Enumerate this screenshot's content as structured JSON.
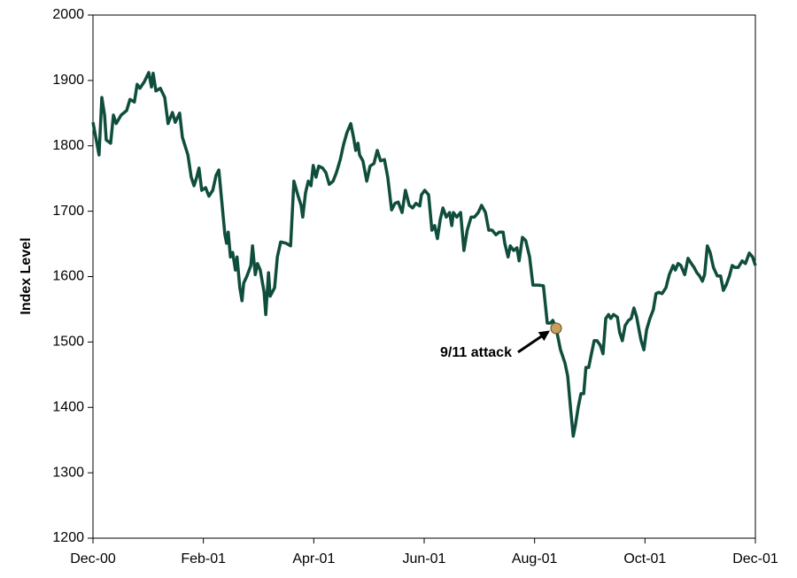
{
  "chart_data": {
    "type": "line",
    "ylabel": "Index Level",
    "xlim": [
      0,
      12
    ],
    "xticks": [
      {
        "value": 0,
        "label": "Dec-00"
      },
      {
        "value": 2,
        "label": "Feb-01"
      },
      {
        "value": 4,
        "label": "Apr-01"
      },
      {
        "value": 6,
        "label": "Jun-01"
      },
      {
        "value": 8,
        "label": "Aug-01"
      },
      {
        "value": 10,
        "label": "Oct-01"
      },
      {
        "value": 12,
        "label": "Dec-01"
      }
    ],
    "ylim": [
      1200,
      2000
    ],
    "yticks": [
      1200,
      1300,
      1400,
      1500,
      1600,
      1700,
      1800,
      1900,
      2000
    ],
    "color": "#0f4d3c",
    "x": [
      0,
      0.11,
      0.16,
      0.21,
      0.24,
      0.32,
      0.37,
      0.42,
      0.51,
      0.61,
      0.67,
      0.75,
      0.8,
      0.85,
      0.93,
      1.01,
      1.06,
      1.09,
      1.14,
      1.22,
      1.3,
      1.36,
      1.44,
      1.49,
      1.57,
      1.62,
      1.72,
      1.78,
      1.83,
      1.88,
      1.92,
      1.97,
      2.04,
      2.1,
      2.17,
      2.23,
      2.28,
      2.33,
      2.39,
      2.42,
      2.45,
      2.49,
      2.53,
      2.58,
      2.61,
      2.66,
      2.7,
      2.73,
      2.79,
      2.86,
      2.89,
      2.94,
      2.98,
      3.03,
      3.1,
      3.13,
      3.18,
      3.21,
      3.29,
      3.34,
      3.4,
      3.5,
      3.58,
      3.64,
      3.71,
      3.77,
      3.8,
      3.85,
      3.9,
      3.95,
      3.99,
      4.04,
      4.09,
      4.16,
      4.22,
      4.28,
      4.35,
      4.41,
      4.48,
      4.54,
      4.6,
      4.67,
      4.72,
      4.76,
      4.8,
      4.83,
      4.89,
      4.96,
      5.02,
      5.09,
      5.15,
      5.21,
      5.28,
      5.34,
      5.41,
      5.47,
      5.53,
      5.6,
      5.66,
      5.73,
      5.79,
      5.85,
      5.92,
      5.95,
      6.01,
      6.08,
      6.14,
      6.19,
      6.24,
      6.29,
      6.34,
      6.4,
      6.46,
      6.5,
      6.53,
      6.59,
      6.66,
      6.72,
      6.78,
      6.85,
      6.91,
      6.98,
      7.04,
      7.11,
      7.17,
      7.23,
      7.3,
      7.36,
      7.43,
      7.46,
      7.52,
      7.56,
      7.62,
      7.68,
      7.72,
      7.78,
      7.84,
      7.91,
      7.97,
      8.07,
      8.16,
      8.23,
      8.29,
      8.33,
      8.39,
      8.47,
      8.55,
      8.6,
      8.65,
      8.7,
      8.74,
      8.79,
      8.84,
      8.89,
      8.93,
      8.98,
      9.03,
      9.08,
      9.13,
      9.19,
      9.24,
      9.29,
      9.34,
      9.38,
      9.43,
      9.5,
      9.54,
      9.59,
      9.64,
      9.7,
      9.75,
      9.8,
      9.85,
      9.9,
      9.93,
      9.98,
      10.03,
      10.09,
      10.15,
      10.2,
      10.25,
      10.31,
      10.38,
      10.44,
      10.51,
      10.55,
      10.6,
      10.65,
      10.72,
      10.78,
      10.84,
      10.89,
      10.94,
      10.99,
      11.04,
      11.08,
      11.13,
      11.18,
      11.24,
      11.31,
      11.37,
      11.42,
      11.47,
      11.53,
      11.58,
      11.63,
      11.69,
      11.76,
      11.82,
      11.89,
      11.95,
      12.0
    ],
    "values": [
      1836,
      1786,
      1874,
      1847,
      1809,
      1804,
      1847,
      1834,
      1847,
      1854,
      1871,
      1867,
      1894,
      1888,
      1898,
      1912,
      1890,
      1911,
      1884,
      1888,
      1874,
      1834,
      1851,
      1836,
      1850,
      1813,
      1786,
      1752,
      1739,
      1752,
      1766,
      1732,
      1736,
      1723,
      1732,
      1755,
      1763,
      1718,
      1664,
      1651,
      1668,
      1630,
      1637,
      1610,
      1630,
      1583,
      1563,
      1590,
      1601,
      1617,
      1647,
      1603,
      1620,
      1610,
      1576,
      1542,
      1606,
      1570,
      1583,
      1630,
      1653,
      1651,
      1647,
      1746,
      1725,
      1709,
      1691,
      1728,
      1746,
      1739,
      1770,
      1752,
      1769,
      1766,
      1759,
      1741,
      1746,
      1759,
      1779,
      1802,
      1820,
      1834,
      1813,
      1793,
      1804,
      1786,
      1777,
      1746,
      1769,
      1773,
      1793,
      1777,
      1779,
      1752,
      1702,
      1712,
      1714,
      1698,
      1732,
      1709,
      1705,
      1712,
      1708,
      1725,
      1732,
      1725,
      1671,
      1678,
      1658,
      1687,
      1705,
      1691,
      1698,
      1678,
      1698,
      1691,
      1698,
      1640,
      1671,
      1691,
      1691,
      1698,
      1709,
      1698,
      1671,
      1671,
      1664,
      1668,
      1668,
      1651,
      1630,
      1647,
      1640,
      1644,
      1624,
      1660,
      1655,
      1630,
      1587,
      1587,
      1586,
      1529,
      1529,
      1533,
      1521,
      1488,
      1468,
      1448,
      1400,
      1356,
      1373,
      1400,
      1421,
      1421,
      1461,
      1461,
      1482,
      1502,
      1502,
      1495,
      1482,
      1536,
      1542,
      1536,
      1542,
      1538,
      1515,
      1502,
      1525,
      1533,
      1536,
      1552,
      1538,
      1515,
      1502,
      1488,
      1519,
      1536,
      1549,
      1574,
      1576,
      1574,
      1583,
      1603,
      1617,
      1610,
      1620,
      1617,
      1603,
      1628,
      1620,
      1614,
      1606,
      1601,
      1593,
      1603,
      1647,
      1637,
      1614,
      1601,
      1601,
      1579,
      1587,
      1601,
      1617,
      1614,
      1614,
      1624,
      1620,
      1636,
      1630,
      1617
    ],
    "annotation": {
      "text": "9/11 attack",
      "x": 8.39,
      "y": 1521,
      "color": "#c8a05c"
    }
  }
}
